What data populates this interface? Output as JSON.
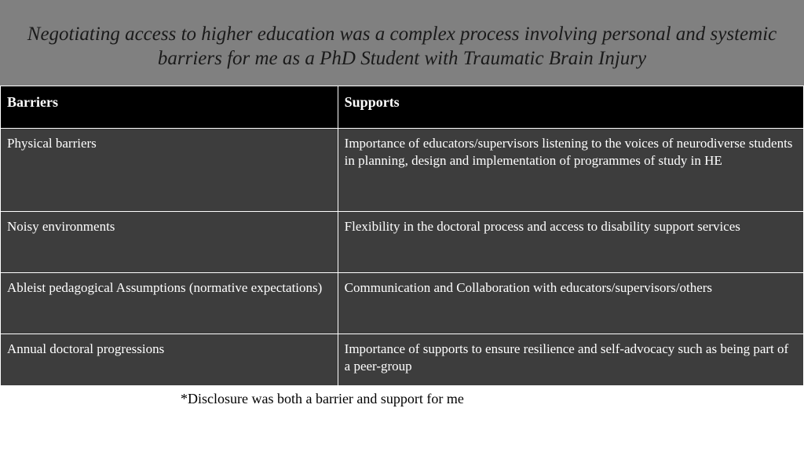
{
  "title": "Negotiating access to higher education was a complex process involving personal and systemic barriers  for me as a PhD Student with Traumatic Brain Injury",
  "table": {
    "headers": {
      "barriers": "Barriers",
      "supports": "Supports"
    },
    "rows": [
      {
        "barrier": "Physical barriers",
        "support": "Importance of educators/supervisors listening to the voices of neurodiverse students in planning, design and implementation of programmes of study in HE"
      },
      {
        "barrier": "Noisy environments",
        "support": "Flexibility in the doctoral process and access to disability support services"
      },
      {
        "barrier": "Ableist pedagogical Assumptions (normative expectations)",
        "support": "Communication and Collaboration with educators/supervisors/others"
      },
      {
        "barrier": "Annual doctoral progressions",
        "support": "Importance of supports to ensure resilience and self-advocacy such as being part of a peer-group"
      }
    ]
  },
  "footnote": "*Disclosure was both a barrier and support for me",
  "colors": {
    "title_bg": "#808080",
    "header_bg": "#000000",
    "cell_bg": "#3d3d3d",
    "text_light": "#ffffff",
    "text_dark": "#1a1a1a",
    "border": "#ffffff"
  }
}
